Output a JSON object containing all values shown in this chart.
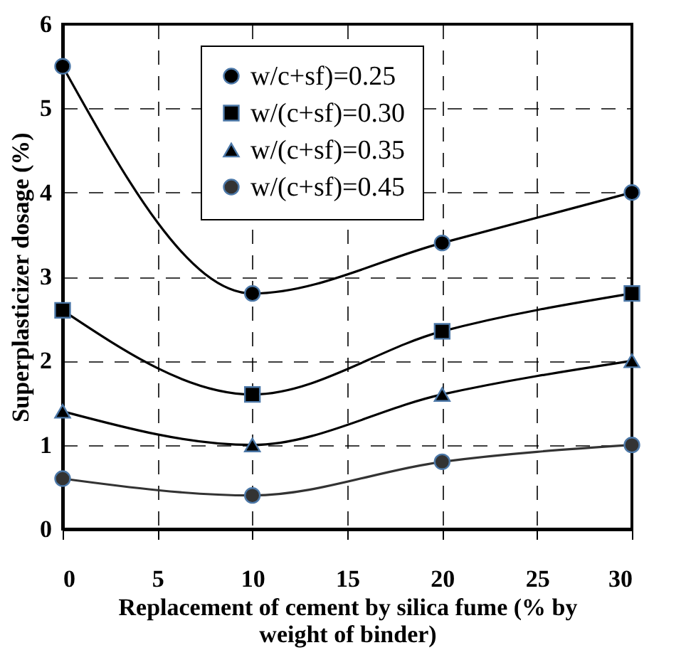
{
  "chart_data": {
    "type": "line",
    "xlabel": "Replacement of cement by silica fume (% by weight of binder)",
    "ylabel": "Superplasticizer dosage (%)",
    "x": [
      0,
      10,
      20,
      30
    ],
    "xlim": [
      0,
      30
    ],
    "xticks": [
      0,
      5,
      10,
      15,
      20,
      25,
      30
    ],
    "ylim": [
      0,
      6
    ],
    "yticks": [
      0,
      1,
      2,
      3,
      4,
      5,
      6
    ],
    "grid": true,
    "legend": "top",
    "line_style": "solid",
    "series": [
      {
        "name": "w/c+sf)=0.25",
        "color": "#000000",
        "marker": "circle",
        "values": [
          5.5,
          2.8,
          3.4,
          4.0
        ]
      },
      {
        "name": "w/(c+sf)=0.30",
        "color": "#000000",
        "marker": "square",
        "values": [
          2.6,
          1.6,
          2.35,
          2.8
        ]
      },
      {
        "name": "w/(c+sf)=0.35",
        "color": "#000000",
        "marker": "triangle",
        "values": [
          1.4,
          1.0,
          1.6,
          2.0
        ]
      },
      {
        "name": "w/(c+sf)=0.45",
        "color": "#333333",
        "marker": "circle",
        "values": [
          0.6,
          0.4,
          0.8,
          1.0
        ]
      }
    ]
  }
}
